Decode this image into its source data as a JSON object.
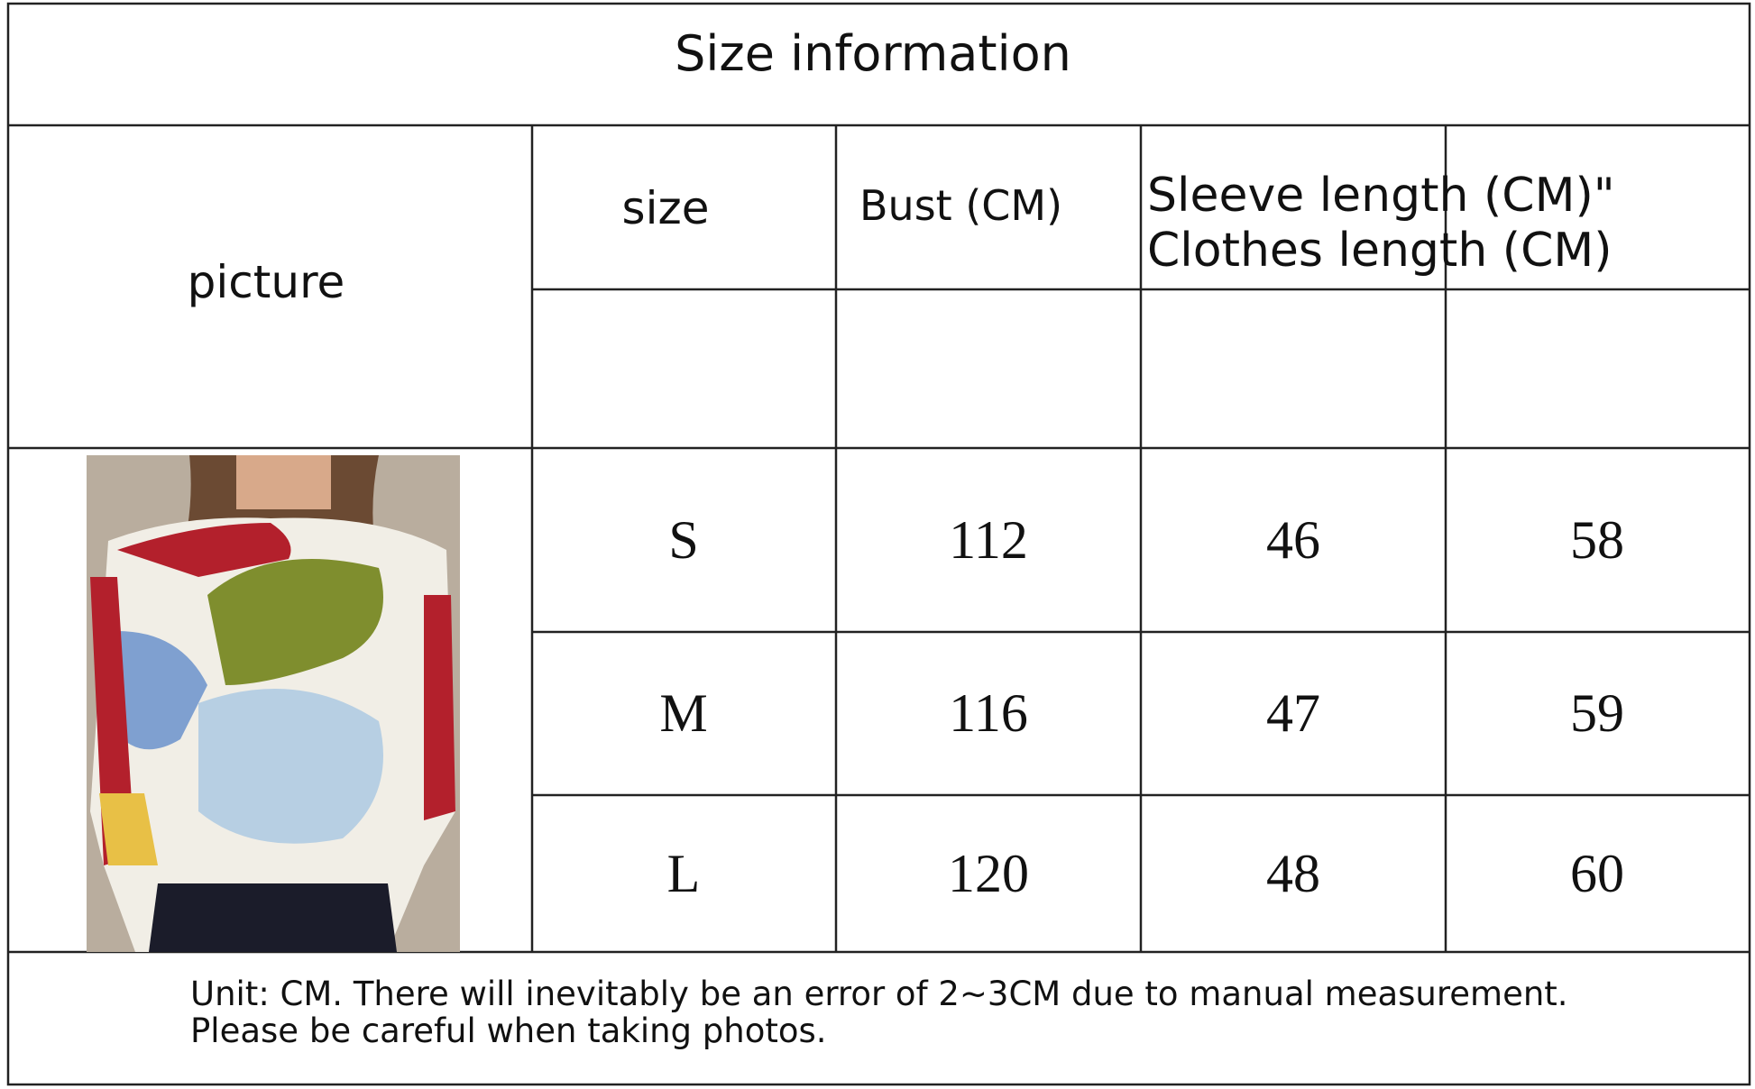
{
  "title": "Size information",
  "header": {
    "picture": "picture",
    "size": "size",
    "bust": "Bust (CM)",
    "sleeve": "Sleeve length (CM)\"",
    "clothes": "Clothes length (CM)"
  },
  "table": {
    "rows": [
      [
        "S",
        112,
        46,
        58
      ],
      [
        "M",
        116,
        47,
        59
      ],
      [
        "L",
        120,
        48,
        60
      ]
    ]
  },
  "footer": [
    "Unit: CM. There will inevitably be an error of 2~3CM due to manual measurement.",
    "Please be careful when taking photos."
  ]
}
